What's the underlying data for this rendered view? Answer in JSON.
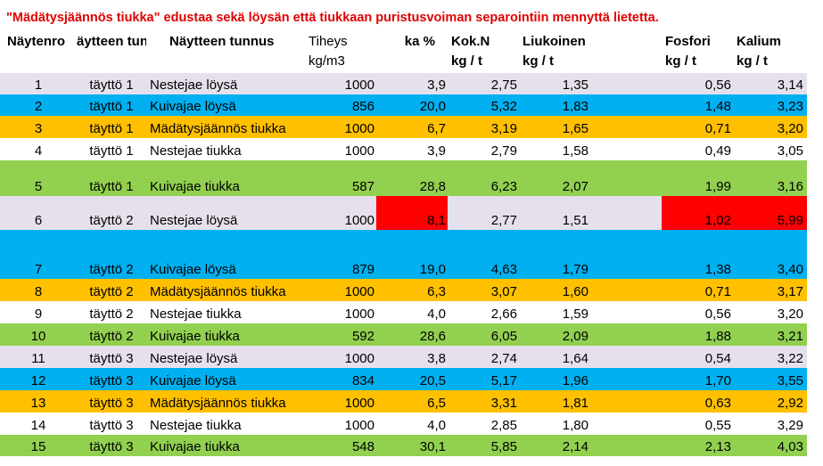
{
  "title": "\"Mädätysjäännös tiukka\" edustaa sekä löysän että tiukkaan puristusvoiman separointiin mennyttä lietetta.",
  "headers": {
    "nro": "Näytenro",
    "tunnus1": "äytteen tunni",
    "tunnus2": "Näytteen tunnus",
    "tiheys": "Tiheys",
    "tiheys_unit": "kg/m3",
    "ka": "ka %",
    "kokn": "Kok.N",
    "kokn_unit": "kg / t",
    "liukn": "Liukoinen N",
    "liukn_unit": "kg / t",
    "fosfori": "Fosfori",
    "fosfori_unit": "kg / t",
    "kalium": "Kalium",
    "kalium_unit": "kg / t"
  },
  "colors": {
    "lavender": "#e6e0ec",
    "blue": "#00b0f0",
    "orange": "#ffc000",
    "white": "#ffffff",
    "green": "#92d050",
    "highlight": "#ff0000"
  },
  "rows": [
    {
      "nro": "1",
      "t1": "täyttö 1",
      "t2": "Nestejae löysä",
      "tiheys": "1000",
      "ka": "3,9",
      "kokn": "2,75",
      "liukn": "1,35",
      "fosfori": "0,56",
      "kalium": "3,14",
      "color": "lavender"
    },
    {
      "nro": "2",
      "t1": "täyttö 1",
      "t2": "Kuivajae löysä",
      "tiheys": "856",
      "ka": "20,0",
      "kokn": "5,32",
      "liukn": "1,83",
      "fosfori": "1,48",
      "kalium": "3,23",
      "color": "blue"
    },
    {
      "nro": "3",
      "t1": "täyttö 1",
      "t2": "Mädätysjäännös tiukka",
      "tiheys": "1000",
      "ka": "6,7",
      "kokn": "3,19",
      "liukn": "1,65",
      "fosfori": "0,71",
      "kalium": "3,20",
      "color": "orange"
    },
    {
      "nro": "4",
      "t1": "täyttö 1",
      "t2": "Nestejae tiukka",
      "tiheys": "1000",
      "ka": "3,9",
      "kokn": "2,79",
      "liukn": "1,58",
      "fosfori": "0,49",
      "kalium": "3,05",
      "color": "white"
    },
    {
      "nro": "5",
      "t1": "täyttö 1",
      "t2": "Kuivajae tiukka",
      "tiheys": "587",
      "ka": "28,8",
      "kokn": "6,23",
      "liukn": "2,07",
      "fosfori": "1,99",
      "kalium": "3,16",
      "color": "green"
    },
    {
      "nro": "6",
      "t1": "täyttö 2",
      "t2": "Nestejae löysä",
      "tiheys": "1000",
      "ka": "8,1",
      "kokn": "2,77",
      "liukn": "1,51",
      "fosfori": "1,02",
      "kalium": "5,99",
      "color": "lavender",
      "highlight": [
        "ka",
        "fosfori",
        "kalium"
      ]
    },
    {
      "nro": "7",
      "t1": "täyttö 2",
      "t2": "Kuivajae löysä",
      "tiheys": "879",
      "ka": "19,0",
      "kokn": "4,63",
      "liukn": "1,79",
      "fosfori": "1,38",
      "kalium": "3,40",
      "color": "blue"
    },
    {
      "nro": "8",
      "t1": "täyttö 2",
      "t2": "Mädätysjäännös tiukka",
      "tiheys": "1000",
      "ka": "6,3",
      "kokn": "3,07",
      "liukn": "1,60",
      "fosfori": "0,71",
      "kalium": "3,17",
      "color": "orange"
    },
    {
      "nro": "9",
      "t1": "täyttö 2",
      "t2": "Nestejae tiukka",
      "tiheys": "1000",
      "ka": "4,0",
      "kokn": "2,66",
      "liukn": "1,59",
      "fosfori": "0,56",
      "kalium": "3,20",
      "color": "white"
    },
    {
      "nro": "10",
      "t1": "täyttö 2",
      "t2": "Kuivajae tiukka",
      "tiheys": "592",
      "ka": "28,6",
      "kokn": "6,05",
      "liukn": "2,09",
      "fosfori": "1,88",
      "kalium": "3,21",
      "color": "green"
    },
    {
      "nro": "11",
      "t1": "täyttö 3",
      "t2": "Nestejae löysä",
      "tiheys": "1000",
      "ka": "3,8",
      "kokn": "2,74",
      "liukn": "1,64",
      "fosfori": "0,54",
      "kalium": "3,22",
      "color": "lavender"
    },
    {
      "nro": "12",
      "t1": "täyttö 3",
      "t2": "Kuivajae löysä",
      "tiheys": "834",
      "ka": "20,5",
      "kokn": "5,17",
      "liukn": "1,96",
      "fosfori": "1,70",
      "kalium": "3,55",
      "color": "blue"
    },
    {
      "nro": "13",
      "t1": "täyttö 3",
      "t2": "Mädätysjäännös tiukka",
      "tiheys": "1000",
      "ka": "6,5",
      "kokn": "3,31",
      "liukn": "1,81",
      "fosfori": "0,63",
      "kalium": "2,92",
      "color": "orange"
    },
    {
      "nro": "14",
      "t1": "täyttö 3",
      "t2": "Nestejae tiukka",
      "tiheys": "1000",
      "ka": "4,0",
      "kokn": "2,85",
      "liukn": "1,80",
      "fosfori": "0,55",
      "kalium": "3,29",
      "color": "white"
    },
    {
      "nro": "15",
      "t1": "täyttö 3",
      "t2": "Kuivajae tiukka",
      "tiheys": "548",
      "ka": "30,1",
      "kokn": "5,85",
      "liukn": "2,14",
      "fosfori": "2,13",
      "kalium": "4,03",
      "color": "green"
    }
  ]
}
